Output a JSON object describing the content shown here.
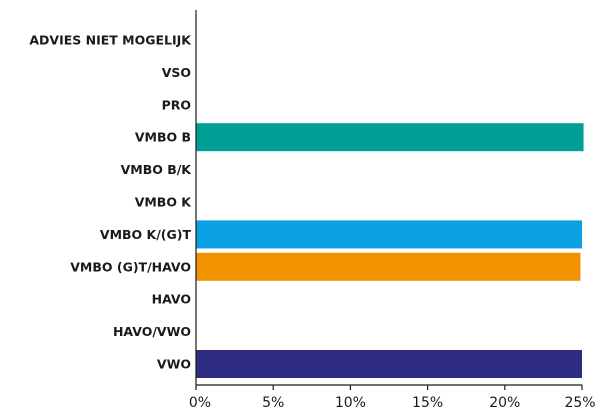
{
  "chart_data": {
    "type": "bar",
    "orientation": "horizontal",
    "categories": [
      "ADVIES NIET MOGELIJK",
      "VSO",
      "PRO",
      "VMBO B",
      "VMBO B/K",
      "VMBO K",
      "VMBO K/(G)T",
      "VMBO (G)T/HAVO",
      "HAVO",
      "HAVO/VWO",
      "VWO"
    ],
    "values": [
      0,
      0,
      0,
      25.1,
      0,
      0,
      25.0,
      24.9,
      0,
      0,
      25.0
    ],
    "bar_colors": [
      "#009f96",
      "#009f96",
      "#009f96",
      "#009f96",
      "#009f96",
      "#009f96",
      "#0ba0e2",
      "#f39200",
      "#2e2d82",
      "#2e2d82",
      "#2e2d82"
    ],
    "xlim": [
      0,
      25
    ],
    "xticks": [
      "0%",
      "5%",
      "10%",
      "15%",
      "20%",
      "25%"
    ],
    "title": "",
    "xlabel": "",
    "ylabel": "",
    "grid": false,
    "legend": "none"
  }
}
